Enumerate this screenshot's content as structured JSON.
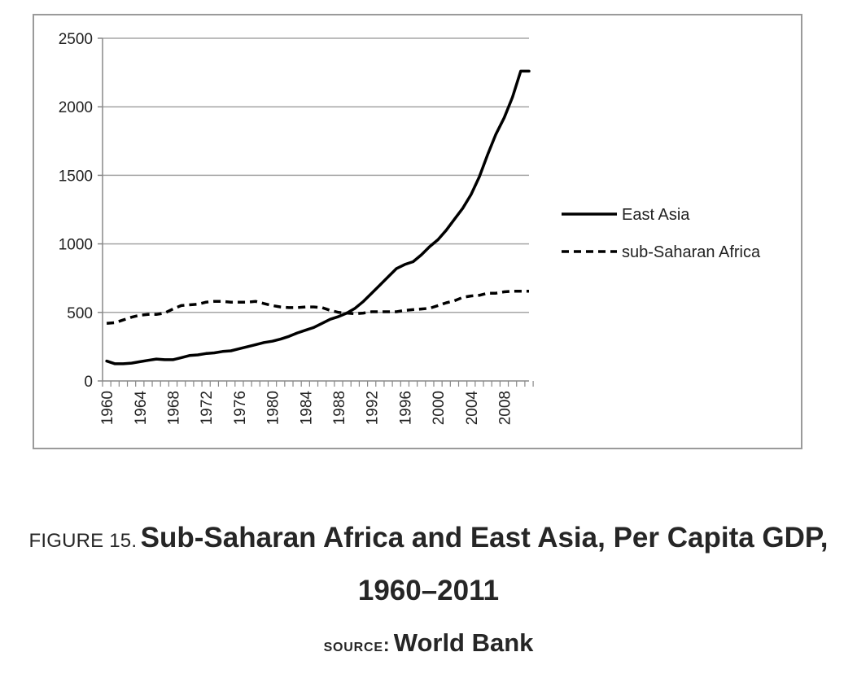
{
  "chart_data": {
    "type": "line",
    "title": "",
    "xlabel": "",
    "ylabel": "",
    "ylim": [
      0,
      2500
    ],
    "yticks": [
      0,
      500,
      1000,
      1500,
      2000,
      2500
    ],
    "xlim": [
      1960,
      2011
    ],
    "xtick_labels": [
      "1960",
      "1964",
      "1968",
      "1972",
      "1976",
      "1980",
      "1984",
      "1988",
      "1992",
      "1996",
      "2000",
      "2004",
      "2008"
    ],
    "grid": true,
    "legend_position": "right",
    "x": [
      1960,
      1961,
      1962,
      1963,
      1964,
      1965,
      1966,
      1967,
      1968,
      1969,
      1970,
      1971,
      1972,
      1973,
      1974,
      1975,
      1976,
      1977,
      1978,
      1979,
      1980,
      1981,
      1982,
      1983,
      1984,
      1985,
      1986,
      1987,
      1988,
      1989,
      1990,
      1991,
      1992,
      1993,
      1994,
      1995,
      1996,
      1997,
      1998,
      1999,
      2000,
      2001,
      2002,
      2003,
      2004,
      2005,
      2006,
      2007,
      2008,
      2009,
      2010,
      2011
    ],
    "series": [
      {
        "name": "East Asia",
        "style": "solid",
        "color": "#000000",
        "values": [
          145,
          125,
          125,
          130,
          140,
          150,
          160,
          155,
          155,
          170,
          185,
          190,
          200,
          205,
          215,
          220,
          235,
          250,
          265,
          280,
          290,
          305,
          325,
          350,
          370,
          390,
          420,
          450,
          470,
          495,
          530,
          580,
          640,
          700,
          760,
          820,
          850,
          870,
          920,
          980,
          1030,
          1100,
          1180,
          1260,
          1360,
          1490,
          1650,
          1800,
          1920,
          2070,
          2260,
          2260
        ]
      },
      {
        "name": "sub-Saharan Africa",
        "style": "dashed",
        "color": "#000000",
        "values": [
          420,
          425,
          445,
          465,
          480,
          485,
          485,
          495,
          525,
          550,
          555,
          560,
          575,
          580,
          580,
          575,
          575,
          575,
          580,
          565,
          550,
          540,
          535,
          535,
          540,
          540,
          535,
          515,
          500,
          495,
          490,
          495,
          505,
          505,
          505,
          505,
          515,
          520,
          525,
          530,
          550,
          570,
          585,
          610,
          620,
          625,
          640,
          640,
          650,
          655,
          655,
          655
        ]
      }
    ]
  },
  "caption": {
    "prefix": "FIGURE 15.",
    "title": "Sub-Saharan Africa and East Asia, Per Capita GDP, 1960–2011"
  },
  "source": {
    "prefix": "source:",
    "value": "World Bank"
  }
}
